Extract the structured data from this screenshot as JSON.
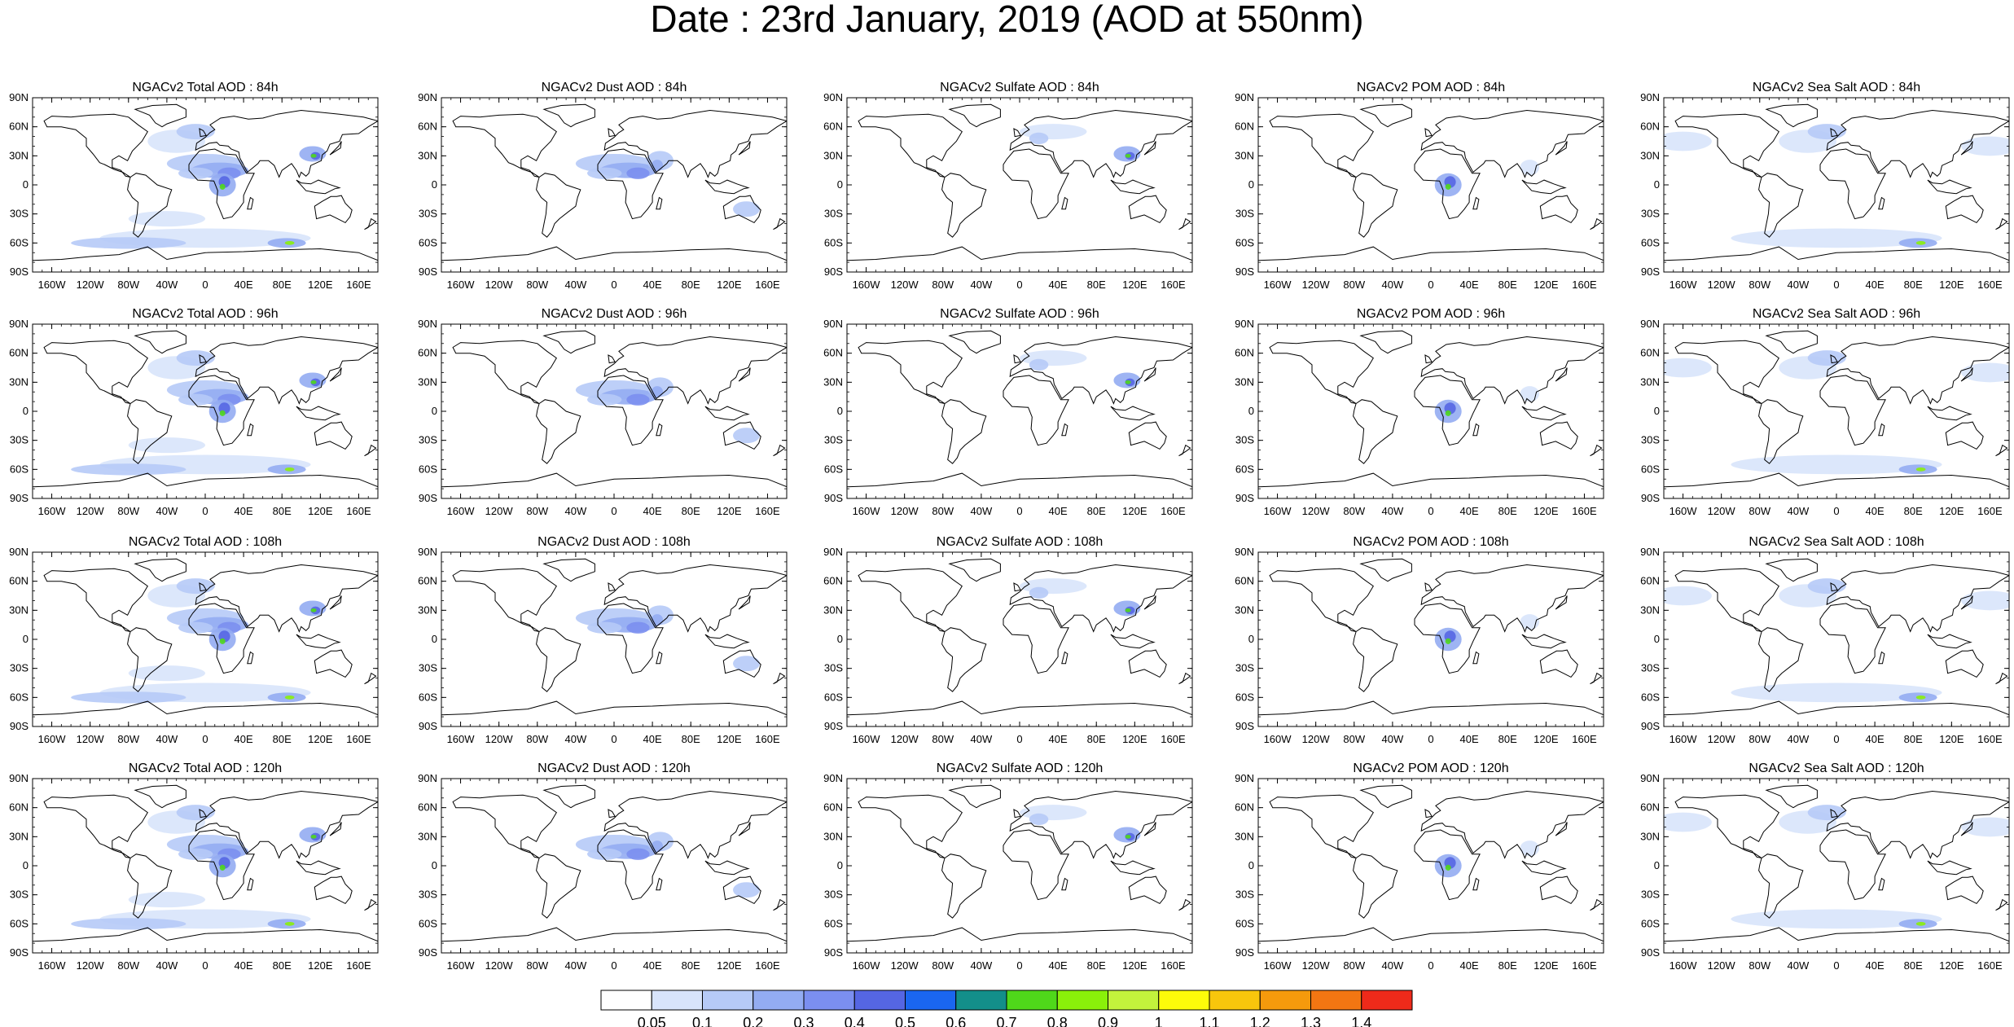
{
  "title": "Date : 23rd January, 2019 (AOD at 550nm)",
  "colors": {
    "coast": "#000000",
    "background": "#ffffff"
  },
  "axes": {
    "lat_labels": [
      "90N",
      "60N",
      "30N",
      "0",
      "30S",
      "60S",
      "90S"
    ],
    "lon_labels": [
      "160W",
      "120W",
      "80W",
      "40W",
      "0",
      "40E",
      "80E",
      "120E",
      "160E"
    ]
  },
  "columns": [
    {
      "variable": "Total",
      "hotspots": [
        "sahara",
        "central-africa",
        "east-china",
        "southern-ocean",
        "north-atlantic",
        "south-atlantic-band"
      ]
    },
    {
      "variable": "Dust",
      "hotspots": [
        "sahara",
        "arabia",
        "australia"
      ]
    },
    {
      "variable": "Sulfate",
      "hotspots": [
        "east-china",
        "europe"
      ]
    },
    {
      "variable": "POM",
      "hotspots": [
        "central-africa",
        "southeast-asia"
      ]
    },
    {
      "variable": "Sea Salt",
      "hotspots": [
        "southern-ocean",
        "north-atlantic",
        "north-pacific"
      ]
    }
  ],
  "panels": [
    [
      "NGACv2 Total AOD : 84h",
      "NGACv2 Dust AOD : 84h",
      "NGACv2 Sulfate AOD : 84h",
      "NGACv2 POM AOD : 84h",
      "NGACv2 Sea Salt AOD : 84h"
    ],
    [
      "NGACv2 Total AOD : 96h",
      "NGACv2 Dust AOD : 96h",
      "NGACv2 Sulfate AOD : 96h",
      "NGACv2 POM AOD : 96h",
      "NGACv2 Sea Salt AOD : 96h"
    ],
    [
      "NGACv2 Total AOD : 108h",
      "NGACv2 Dust AOD : 108h",
      "NGACv2 Sulfate AOD : 108h",
      "NGACv2 POM AOD : 108h",
      "NGACv2 Sea Salt AOD : 108h"
    ],
    [
      "NGACv2 Total AOD : 120h",
      "NGACv2 Dust AOD : 120h",
      "NGACv2 Sulfate AOD : 120h",
      "NGACv2 POM AOD : 120h",
      "NGACv2 Sea Salt  AOD : 120h"
    ]
  ],
  "colorbar": {
    "labels": [
      "0.05",
      "0.1",
      "0.2",
      "0.3",
      "0.4",
      "0.5",
      "0.6",
      "0.7",
      "0.8",
      "0.9",
      "1",
      "1.1",
      "1.2",
      "1.3",
      "1.4"
    ],
    "colors": [
      "#ffffff",
      "#d8e4fb",
      "#b6caf7",
      "#93acf2",
      "#7b8ff0",
      "#5566e3",
      "#1a66f0",
      "#138f8a",
      "#4fd81a",
      "#8af00a",
      "#c3f23c",
      "#fdfb0a",
      "#f8c60c",
      "#f59a0c",
      "#f27612",
      "#ee2a1a"
    ]
  }
}
